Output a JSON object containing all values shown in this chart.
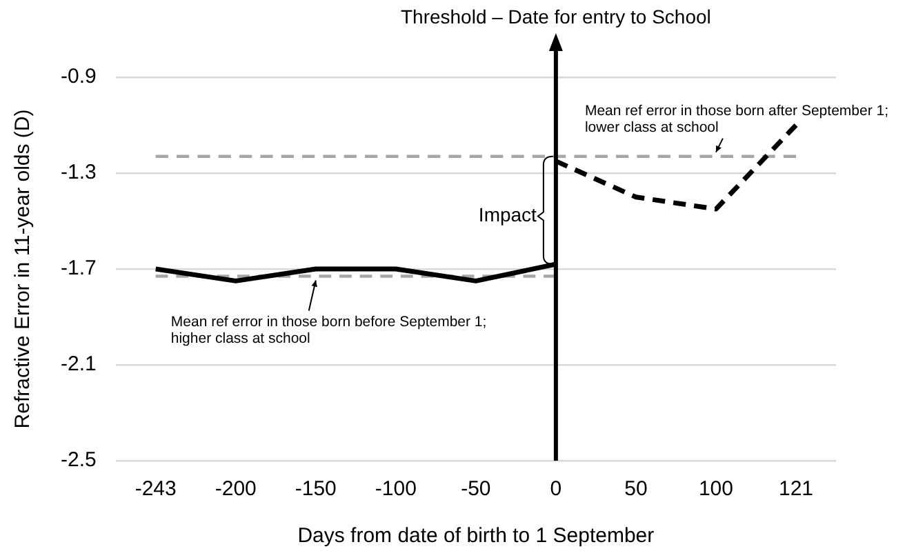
{
  "chart_data": {
    "type": "line",
    "xlabel": "Days from date of birth to 1 September",
    "ylabel": "Refractive Error in 11-year olds (D)",
    "categories": [
      "-243",
      "-200",
      "-150",
      "-100",
      "-50",
      "0",
      "50",
      "100",
      "121"
    ],
    "series": [
      {
        "color": "#000000",
        "line_style": "solid",
        "values": [
          -1.7,
          -1.75,
          -1.7,
          -1.7,
          -1.75,
          -1.68,
          null,
          null,
          null
        ]
      },
      {
        "color": "#000000",
        "line_style": "dashed",
        "values": [
          null,
          null,
          null,
          null,
          null,
          -1.25,
          -1.4,
          -1.45,
          -1.1
        ]
      },
      {
        "color": "#a6a6a6",
        "line_style": "dashed",
        "values": [
          -1.73,
          -1.73,
          -1.73,
          -1.73,
          -1.73,
          -1.73,
          null,
          null,
          null
        ]
      },
      {
        "color": "#a6a6a6",
        "line_style": "dashed",
        "values": [
          -1.23,
          -1.23,
          -1.23,
          -1.23,
          -1.23,
          -1.23,
          -1.23,
          -1.23,
          -1.23
        ]
      }
    ],
    "ylim": [
      -2.5,
      -0.9
    ],
    "yticks": [
      -2.5,
      -2.1,
      -1.7,
      -1.3,
      -0.9
    ],
    "grid": "y",
    "legend": false,
    "marker": "none",
    "ref_lines": [
      {
        "axis": "x",
        "value": "0",
        "label": "Threshold – Date for entry to School",
        "color": "#000000"
      }
    ],
    "annotations": [
      {
        "text": "Mean ref error in those born before September 1; higher class at school",
        "x": "-150",
        "y": -1.73
      },
      {
        "text": "Mean ref error in those born after September 1; lower class at school",
        "x": "100",
        "y": -1.23
      },
      {
        "text": "Impact",
        "x": "0",
        "y": -1.48
      }
    ]
  }
}
